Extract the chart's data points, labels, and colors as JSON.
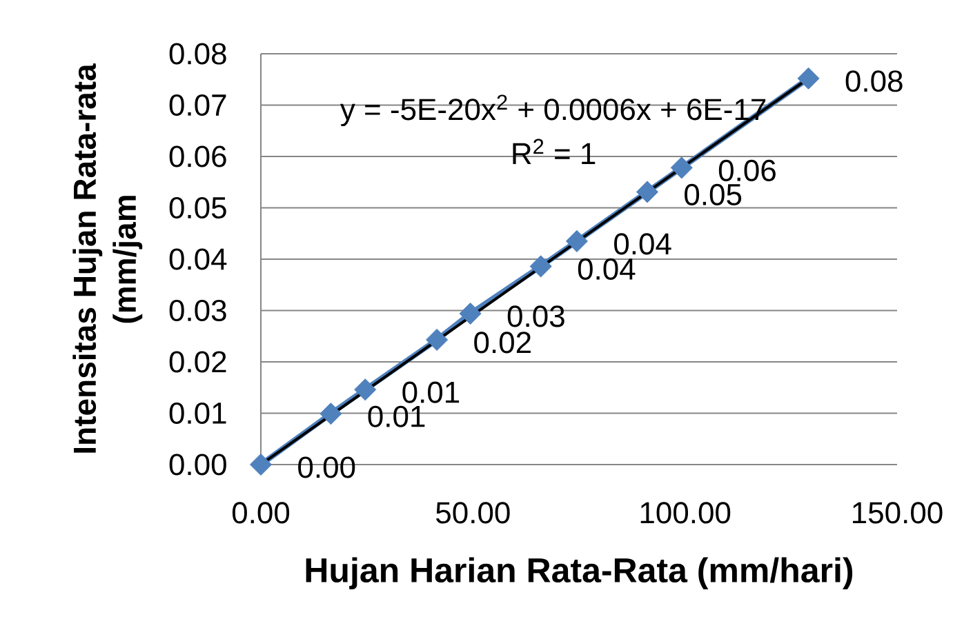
{
  "chart_data": {
    "type": "line",
    "xlabel": "Hujan Harian Rata-Rata (mm/hari)",
    "ylabel": "Intensitas Hujan Rata-rata (mm/jam",
    "annotations": [
      "y = -5E-20x$^{2}$ + 0.0006x + 6E-17",
      "R$^{2}$ = 1"
    ],
    "series": [
      {
        "color": "#4f81bd",
        "marker": "diamond",
        "x": [
          0,
          16.5,
          24.6,
          41.5,
          49.4,
          66.0,
          74.5,
          91.1,
          99.2,
          129.1
        ],
        "values": [
          0,
          0.0099,
          0.0146,
          0.0243,
          0.0294,
          0.0386,
          0.0435,
          0.0531,
          0.0578,
          0.0752
        ],
        "value_labels": [
          "0.00",
          "0.01",
          "0.01",
          "0.02",
          "0.03",
          "0.04",
          "0.04",
          "0.05",
          "0.06",
          "0.08"
        ]
      },
      {
        "color": "#000000",
        "marker": "none",
        "x": [
          0,
          129.1
        ],
        "values": [
          0,
          0.0752
        ]
      }
    ],
    "xlim": [
      0,
      150
    ],
    "xticks": [
      {
        "value": 0,
        "label": "0.00"
      },
      {
        "value": 50,
        "label": "50.00"
      },
      {
        "value": 100,
        "label": "100.00"
      },
      {
        "value": 150,
        "label": "150.00"
      }
    ],
    "ylim": [
      0,
      0.08
    ],
    "yticks": [
      {
        "value": 0,
        "label": "0.00"
      },
      0.01,
      0.02,
      0.03,
      0.04,
      0.05,
      0.06,
      0.07,
      0.08
    ],
    "grid": "y"
  }
}
